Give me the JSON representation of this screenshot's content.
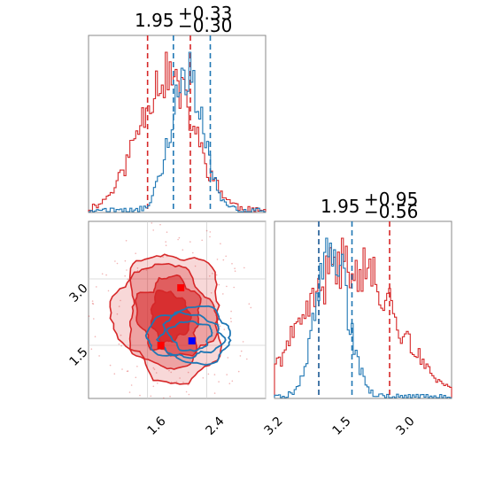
{
  "titles": {
    "top_left": {
      "value": "1.95",
      "upper": "+0.33",
      "lower": "−0.30"
    },
    "bottom_right": {
      "value": "1.95",
      "upper": "+0.95",
      "lower": "−0.56"
    }
  },
  "colors": {
    "red": "#d62728",
    "blue": "#1f77b4",
    "grid": "#d0d0d0",
    "marker_red": "#ff0000",
    "marker_blue": "#0000ff"
  },
  "chart_data": [
    {
      "type": "histogram",
      "panel": "top-left",
      "xlim": [
        0.8,
        3.2
      ],
      "x_ticks": [
        1.6,
        2.4,
        3.2
      ],
      "series": [
        {
          "color": "#d62728",
          "center": 1.85,
          "sigma": 0.38,
          "quantile_lines": [
            1.6,
            2.18
          ]
        },
        {
          "color": "#1f77b4",
          "center": 2.12,
          "sigma": 0.22,
          "quantile_lines": [
            1.95,
            2.45
          ]
        }
      ]
    },
    {
      "type": "contour",
      "panel": "bottom-left",
      "xlim": [
        0.8,
        3.2
      ],
      "ylim": [
        0.3,
        4.3
      ],
      "x_ticks": [
        "1.6",
        "2.4",
        "3.2"
      ],
      "y_ticks": [
        "1.5",
        "3.0"
      ],
      "markers": [
        {
          "color": "#ff0000",
          "x": 2.05,
          "y": 2.8
        },
        {
          "color": "#ff0000",
          "x": 1.78,
          "y": 1.5
        },
        {
          "color": "#0000ff",
          "x": 2.2,
          "y": 1.6
        }
      ]
    },
    {
      "type": "histogram",
      "panel": "bottom-right",
      "xlim": [
        0.3,
        4.3
      ],
      "x_ticks": [
        "1.5",
        "3.0"
      ],
      "series": [
        {
          "color": "#d62728",
          "center": 2.0,
          "sigma": 1.0,
          "quantile_lines": [
            1.3,
            2.9
          ]
        },
        {
          "color": "#1f77b4",
          "center": 1.6,
          "sigma": 0.35,
          "quantile_lines": [
            1.3,
            2.05
          ]
        }
      ]
    }
  ]
}
